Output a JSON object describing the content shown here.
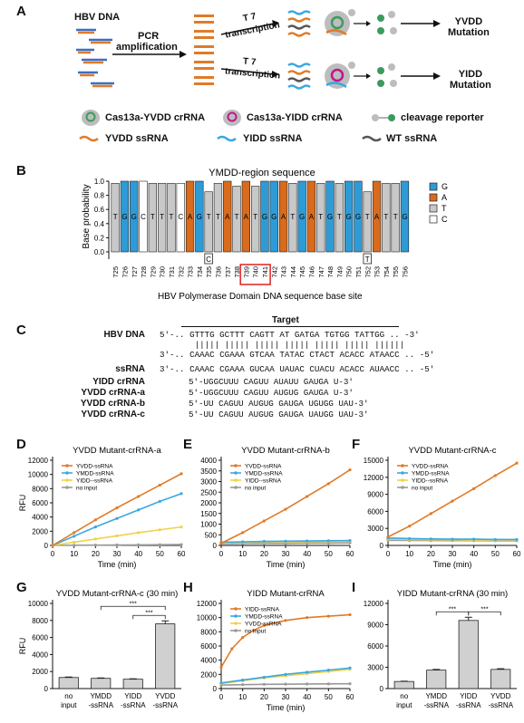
{
  "panel_labels": {
    "A": "A",
    "B": "B",
    "C": "C",
    "D": "D",
    "E": "E",
    "F": "F",
    "G": "G",
    "H": "H",
    "I": "I"
  },
  "panelA": {
    "hbv_dna": "HBV DNA",
    "pcr": "PCR",
    "amplification": "amplification",
    "t7_1": "T 7",
    "transcription_1": "transcription",
    "t7_2": "T 7",
    "transcription_2": "transcription",
    "yvdd_mut_1": "YVDD",
    "yvdd_mut_2": "Mutation",
    "yidd_mut_1": "YIDD",
    "yidd_mut_2": "Mutation",
    "legend": {
      "cas13a_yvdd": "Cas13a-YVDD crRNA",
      "cas13a_yidd": "Cas13a-YIDD crRNA",
      "reporter": "cleavage reporter",
      "yvdd_ssrna": "YVDD ssRNA",
      "yidd_ssrna": "YIDD  ssRNA",
      "wt_ssrna": "WT  ssRNA"
    },
    "colors": {
      "orange": "#e07b28",
      "blue": "#3aa8e0",
      "gray": "#555555",
      "green": "#3c9a5f",
      "magenta": "#c2168e"
    }
  },
  "panelB": {
    "title": "YMDD-region sequence",
    "ylabel": "Base probability",
    "xlabel": "HBV Polymerase Domain DNA sequence base site",
    "yticks": [
      "0.0",
      "0.2",
      "0.4",
      "0.6",
      "0.8",
      "1.0"
    ],
    "positions": [
      "725",
      "726",
      "727",
      "728",
      "729",
      "730",
      "731",
      "732",
      "733",
      "734",
      "735",
      "736",
      "737",
      "738",
      "739",
      "740",
      "741",
      "742",
      "743",
      "744",
      "745",
      "746",
      "747",
      "748",
      "749",
      "750",
      "751",
      "752",
      "753",
      "754",
      "755",
      "756"
    ],
    "bases": [
      "T",
      "G",
      "G",
      "C",
      "T",
      "T",
      "T",
      "C",
      "A",
      "G",
      "T",
      "T",
      "A",
      "T",
      "A",
      "T",
      "G",
      "G",
      "A",
      "T",
      "G",
      "A",
      "T",
      "G",
      "T",
      "G",
      "G",
      "T",
      "A",
      "T",
      "T",
      "G"
    ],
    "base_values": [
      0.97,
      1.0,
      1.0,
      1.0,
      0.97,
      0.97,
      0.97,
      0.97,
      1.0,
      1.0,
      0.85,
      0.97,
      1.0,
      0.93,
      1.0,
      0.93,
      1.0,
      1.0,
      1.0,
      0.97,
      1.0,
      1.0,
      0.97,
      1.0,
      0.97,
      1.0,
      1.0,
      0.85,
      1.0,
      0.97,
      0.97,
      1.0
    ],
    "minor_bases": {
      "10": "C",
      "27": "T"
    },
    "legend": [
      "G",
      "A",
      "T",
      "C"
    ],
    "colors": {
      "G": "#2e9bd6",
      "A": "#d86b1c",
      "T": "#c8c8c8",
      "C": "#ffffff"
    }
  },
  "panelC": {
    "target": "Target",
    "rows": [
      {
        "label": "HBV DNA",
        "seq": "5'-.. GTTTG GCTTT CAGTT AT GATGA TGTGG TATTGG .. -3'"
      },
      {
        "label": "",
        "seq": "       ||||| ||||| ||||| ||||| ||||| ||||| ||||||"
      },
      {
        "label": "",
        "seq": "3'-.. CAAAC CGAAA GTCAA TATAC CTACT ACACC ATAACC .. -5'"
      },
      {
        "label": "ssRNA",
        "seq": "3'-.. CAAAC CGAAA GUCAA UAUAC CUACU ACACC AUAACC .. -5'"
      },
      {
        "label": "YIDD crRNA",
        "seq": "5'-UGGCUUU CAGUU AUAUU GAUGA U-3'"
      },
      {
        "label": "YVDD crRNA-a",
        "seq": "5'-UGGCUUU CAGUU AUGUG GAUGA U-3'"
      },
      {
        "label": "YVDD crRNA-b",
        "seq": "5'-UU CAGUU AUGUG GAUGA UGUGG UAU-3'"
      },
      {
        "label": "YVDD crRNA-c",
        "seq": "5'-UU CAGUU AUGUG GAUGA UAUGG UAU-3'"
      }
    ]
  },
  "axes_common": {
    "time_label": "Time (min)",
    "rfu_label": "RFU"
  },
  "chart_data": [
    {
      "type": "line",
      "id": "D",
      "title": "YVDD Mutant-crRNA-a",
      "xlabel": "Time (min)",
      "ylabel": "RFU",
      "xlim": [
        0,
        60
      ],
      "ylim": [
        0,
        12000
      ],
      "xticks": [
        0,
        10,
        20,
        30,
        40,
        50,
        60
      ],
      "yticks": [
        0,
        2000,
        4000,
        6000,
        8000,
        10000,
        12000
      ],
      "series": [
        {
          "name": "YVDD-ssRNA",
          "color": "#e07b28",
          "x": [
            0,
            10,
            20,
            30,
            40,
            50,
            60
          ],
          "y": [
            0,
            1800,
            3600,
            5300,
            6900,
            8500,
            10100
          ]
        },
        {
          "name": "YMDD-ssRNA",
          "color": "#3aa8e0",
          "x": [
            0,
            10,
            20,
            30,
            40,
            50,
            60
          ],
          "y": [
            0,
            1300,
            2600,
            3800,
            5000,
            6200,
            7300
          ]
        },
        {
          "name": "YIDD--ssRNA",
          "color": "#f0d24a",
          "x": [
            0,
            10,
            20,
            30,
            40,
            50,
            60
          ],
          "y": [
            0,
            450,
            900,
            1350,
            1800,
            2200,
            2600
          ]
        },
        {
          "name": "no input",
          "color": "#999999",
          "x": [
            0,
            10,
            20,
            30,
            40,
            50,
            60
          ],
          "y": [
            0,
            20,
            40,
            60,
            80,
            100,
            120
          ]
        }
      ]
    },
    {
      "type": "line",
      "id": "E",
      "title": "YVDD Mutant-crRNA-b",
      "xlabel": "Time (min)",
      "ylabel": "",
      "xlim": [
        0,
        60
      ],
      "ylim": [
        0,
        4000
      ],
      "xticks": [
        0,
        10,
        20,
        30,
        40,
        50,
        60
      ],
      "yticks": [
        0,
        500,
        1000,
        1500,
        2000,
        2500,
        3000,
        3500,
        4000
      ],
      "series": [
        {
          "name": "YVDD-ssRNA",
          "color": "#e07b28",
          "x": [
            0,
            10,
            20,
            30,
            40,
            50,
            60
          ],
          "y": [
            100,
            600,
            1150,
            1700,
            2300,
            2900,
            3550
          ]
        },
        {
          "name": "YMDD-ssRNA",
          "color": "#3aa8e0",
          "x": [
            0,
            10,
            20,
            30,
            40,
            50,
            60
          ],
          "y": [
            150,
            170,
            190,
            200,
            210,
            220,
            230
          ]
        },
        {
          "name": "YIDD--ssRNA",
          "color": "#f0d24a",
          "x": [
            0,
            10,
            20,
            30,
            40,
            50,
            60
          ],
          "y": [
            120,
            140,
            160,
            170,
            180,
            190,
            200
          ]
        },
        {
          "name": "no input",
          "color": "#999999",
          "x": [
            0,
            10,
            20,
            30,
            40,
            50,
            60
          ],
          "y": [
            80,
            90,
            100,
            100,
            110,
            110,
            120
          ]
        }
      ]
    },
    {
      "type": "line",
      "id": "F",
      "title": "YVDD Mutant-crRNA-c",
      "xlabel": "Time (min)",
      "ylabel": "",
      "xlim": [
        0,
        60
      ],
      "ylim": [
        0,
        15000
      ],
      "xticks": [
        0,
        10,
        20,
        30,
        40,
        50,
        60
      ],
      "yticks": [
        0,
        3000,
        6000,
        9000,
        12000,
        15000
      ],
      "series": [
        {
          "name": "YVDD-ssRNA",
          "color": "#e07b28",
          "x": [
            0,
            10,
            20,
            30,
            40,
            50,
            60
          ],
          "y": [
            1500,
            3400,
            5600,
            7800,
            10000,
            12300,
            14500
          ]
        },
        {
          "name": "YMDD-ssRNA",
          "color": "#3aa8e0",
          "x": [
            0,
            10,
            20,
            30,
            40,
            50,
            60
          ],
          "y": [
            1300,
            1200,
            1150,
            1100,
            1100,
            1050,
            1050
          ]
        },
        {
          "name": "YIDD--ssRNA",
          "color": "#f0d24a",
          "x": [
            0,
            10,
            20,
            30,
            40,
            50,
            60
          ],
          "y": [
            1100,
            1050,
            1000,
            1000,
            950,
            950,
            950
          ]
        },
        {
          "name": "no input",
          "color": "#999999",
          "x": [
            0,
            10,
            20,
            30,
            40,
            50,
            60
          ],
          "y": [
            900,
            880,
            860,
            850,
            840,
            830,
            820
          ]
        }
      ]
    },
    {
      "type": "bar",
      "id": "G",
      "title": "YVDD Mutant-crRNA-c (30 min)",
      "ylabel": "RFU",
      "ylim": [
        0,
        10000
      ],
      "yticks": [
        0,
        2000,
        4000,
        6000,
        8000,
        10000
      ],
      "categories": [
        [
          "no",
          "input"
        ],
        [
          "YMDD",
          "-ssRNA"
        ],
        [
          "YIDD",
          "-ssRNA"
        ],
        [
          "YVDD",
          "-ssRNA"
        ]
      ],
      "values": [
        1300,
        1200,
        1100,
        7600
      ],
      "errors": [
        60,
        50,
        50,
        350
      ],
      "signif": "***"
    },
    {
      "type": "line",
      "id": "H",
      "title": "YIDD Mutant-crRNA",
      "xlabel": "Time (min)",
      "ylabel": "",
      "xlim": [
        0,
        60
      ],
      "ylim": [
        0,
        12000
      ],
      "xticks": [
        0,
        10,
        20,
        30,
        40,
        50,
        60
      ],
      "yticks": [
        0,
        2000,
        4000,
        6000,
        8000,
        10000,
        12000
      ],
      "series": [
        {
          "name": "YIDD-ssRNA",
          "color": "#e07b28",
          "x": [
            0,
            5,
            10,
            15,
            20,
            30,
            40,
            50,
            60
          ],
          "y": [
            3000,
            5600,
            7200,
            8200,
            8900,
            9600,
            10000,
            10200,
            10400
          ]
        },
        {
          "name": "YMDD-ssRNA",
          "color": "#3aa8e0",
          "x": [
            0,
            10,
            20,
            30,
            40,
            50,
            60
          ],
          "y": [
            800,
            1200,
            1600,
            2000,
            2300,
            2600,
            2900
          ]
        },
        {
          "name": "YVDD-ssRNA",
          "color": "#f0d24a",
          "x": [
            0,
            10,
            20,
            30,
            40,
            50,
            60
          ],
          "y": [
            700,
            1100,
            1500,
            1800,
            2100,
            2400,
            2700
          ]
        },
        {
          "name": "no input",
          "color": "#999999",
          "x": [
            0,
            10,
            20,
            30,
            40,
            50,
            60
          ],
          "y": [
            500,
            550,
            600,
            620,
            640,
            660,
            680
          ]
        }
      ]
    },
    {
      "type": "bar",
      "id": "I",
      "title": "YIDD Mutant-crRNA (30 min)",
      "ylabel": "",
      "ylim": [
        0,
        12000
      ],
      "yticks": [
        0,
        3000,
        6000,
        9000,
        12000
      ],
      "categories": [
        [
          "no",
          "input"
        ],
        [
          "YMDD",
          "-ssRNA"
        ],
        [
          "YIDD",
          "-ssRNA"
        ],
        [
          "YVDD",
          "-ssRNA"
        ]
      ],
      "values": [
        1000,
        2600,
        9600,
        2700
      ],
      "errors": [
        40,
        100,
        450,
        100
      ],
      "signif": "***"
    }
  ]
}
